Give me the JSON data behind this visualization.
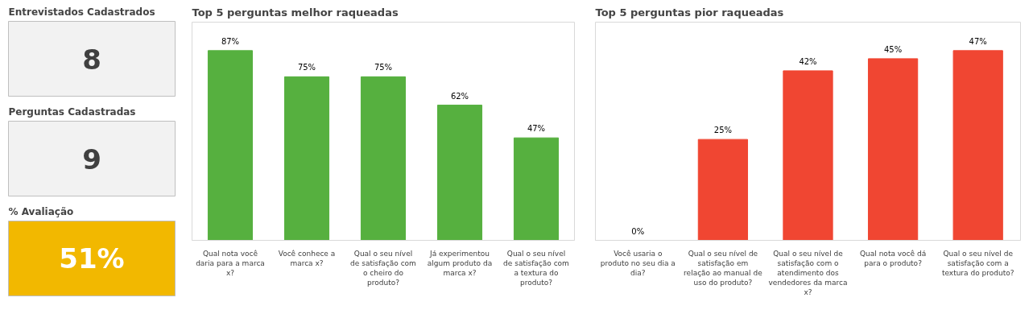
{
  "chart_data": [
    {
      "type": "other",
      "title": "Entrevistados Cadastrados",
      "annotations": [
        "8"
      ],
      "color": "#f2f2f2"
    },
    {
      "type": "other",
      "title": "Perguntas Cadastradas",
      "annotations": [
        "9"
      ],
      "color": "#f2f2f2"
    },
    {
      "type": "other",
      "title": "% Avaliação",
      "annotations": [
        "51%"
      ],
      "color": "#f2b800"
    },
    {
      "type": "bar",
      "title": "Top 5 perguntas melhor raqueadas",
      "categories": [
        "Qual nota você daria para a marca x?",
        "Você conhece a marca x?",
        "Qual o seu nível de satisfação com o cheiro do produto?",
        "Já experimentou algum produto da marca x?",
        "Qual o seu nível de satisfação com a textura do produto?"
      ],
      "values": [
        87,
        75,
        75,
        62,
        47
      ],
      "value_labels": [
        "87%",
        "75%",
        "75%",
        "62%",
        "47%"
      ],
      "color": "#56b03f",
      "grid": false,
      "legend": false
    },
    {
      "type": "bar",
      "title": "Top 5 perguntas pior raqueadas",
      "categories": [
        "Você usaria o produto no seu dia a dia?",
        "Qual o seu nível de satisfação em relação ao manual de uso do produto?",
        "Qual o seu nível de satisfação com o atendimento dos vendedores da marca x?",
        "Qual nota você dá para o produto?",
        "Qual o seu nível de satisfação com a textura do produto?"
      ],
      "values": [
        0,
        25,
        42,
        45,
        47
      ],
      "value_labels": [
        "0%",
        "25%",
        "42%",
        "45%",
        "47%"
      ],
      "color": "#f04632",
      "grid": false,
      "legend": false
    }
  ]
}
